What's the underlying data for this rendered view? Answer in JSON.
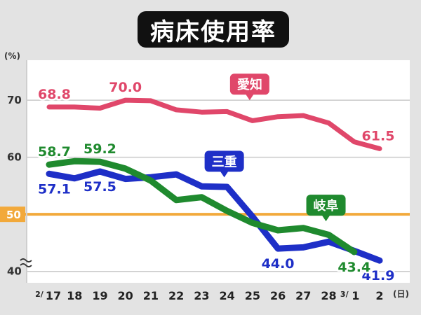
{
  "title": "病床使用率",
  "colors": {
    "aichi": "#e0476a",
    "mie": "#1e2fc7",
    "gifu": "#1f8a2e",
    "reference": "#f2a93b",
    "reference_label_bg": "#f2a93b"
  },
  "chart_data": {
    "type": "line",
    "title": "病床使用率",
    "ylabel": "(%)",
    "xlabel": "",
    "x_unit": "(日)",
    "ylim": [
      38,
      77
    ],
    "y_ticks": [
      "70",
      "60",
      "50",
      "40"
    ],
    "reference_line": {
      "value": 50,
      "label": "50"
    },
    "categories": [
      "2/17",
      "18",
      "19",
      "20",
      "21",
      "22",
      "23",
      "24",
      "25",
      "26",
      "27",
      "28",
      "3/1",
      "2"
    ],
    "series": [
      {
        "key": "aichi",
        "name": "愛知",
        "values": [
          68.8,
          68.8,
          68.6,
          70.0,
          69.9,
          68.3,
          67.9,
          68.0,
          66.4,
          67.1,
          67.3,
          66.0,
          62.7,
          61.5
        ],
        "labels": [
          {
            "index": 0,
            "text": "68.8",
            "pos": "above"
          },
          {
            "index": 3,
            "text": "70.0",
            "pos": "above"
          },
          {
            "index": 13,
            "text": "61.5",
            "pos": "above"
          }
        ]
      },
      {
        "key": "mie",
        "name": "三重",
        "values": [
          57.1,
          56.3,
          57.5,
          56.2,
          56.5,
          57.0,
          54.9,
          54.8,
          49.6,
          44.0,
          44.2,
          45.2,
          43.6,
          41.9
        ],
        "labels": [
          {
            "index": 0,
            "text": "57.1",
            "pos": "below"
          },
          {
            "index": 2,
            "text": "57.5",
            "pos": "below"
          },
          {
            "index": 9,
            "text": "44.0",
            "pos": "below"
          },
          {
            "index": 13,
            "text": "41.9",
            "pos": "below"
          }
        ]
      },
      {
        "key": "gifu",
        "name": "岐阜",
        "values": [
          58.7,
          59.3,
          59.2,
          58.0,
          55.9,
          52.5,
          53.0,
          50.6,
          48.5,
          47.2,
          47.6,
          46.4,
          43.4,
          null
        ],
        "labels": [
          {
            "index": 0,
            "text": "58.7",
            "pos": "above"
          },
          {
            "index": 2,
            "text": "59.2",
            "pos": "above"
          },
          {
            "index": 12,
            "text": "43.4",
            "pos": "below"
          }
        ]
      }
    ],
    "series_tags": [
      {
        "key": "aichi",
        "text": "愛知",
        "index": 8,
        "value": 72.8
      },
      {
        "key": "mie",
        "text": "三重",
        "index": 7,
        "value": 59.3
      },
      {
        "key": "gifu",
        "text": "岐阜",
        "index": 11,
        "value": 51.6
      }
    ]
  }
}
